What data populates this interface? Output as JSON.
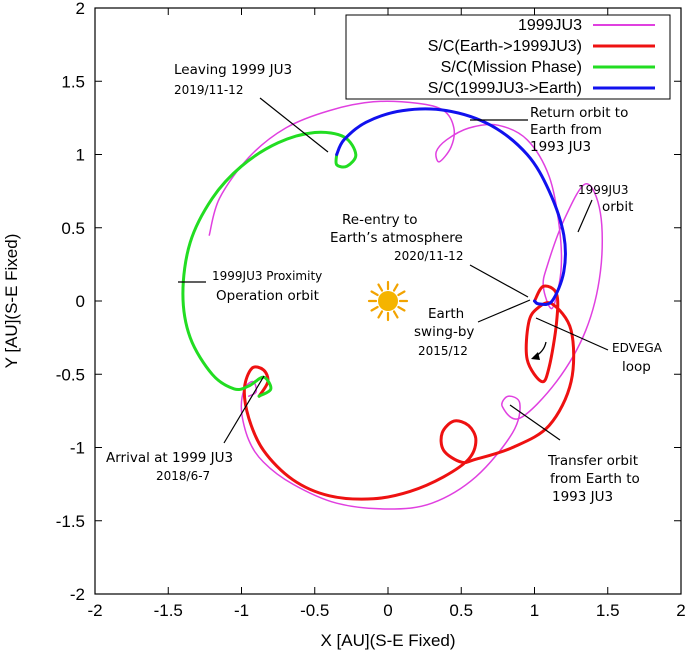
{
  "chart_data": {
    "type": "line",
    "xlabel": "X [AU](S-E Fixed)",
    "ylabel": "Y [AU](S-E Fixed)",
    "xlim": [
      -2,
      2
    ],
    "ylim": [
      -2,
      2
    ],
    "x_ticks": [
      -2,
      -1.5,
      -1,
      -0.5,
      0,
      0.5,
      1,
      1.5,
      2
    ],
    "y_ticks": [
      -2,
      -1.5,
      -1,
      -0.5,
      0,
      0.5,
      1,
      1.5,
      2
    ],
    "x_tick_labels": [
      "-2",
      "-1.5",
      "-1",
      "-0.5",
      "0",
      "0.5",
      "1",
      "1.5",
      "2"
    ],
    "y_tick_labels": [
      "-2",
      "-1.5",
      "-1",
      "-0.5",
      "0",
      "0.5",
      "1",
      "1.5",
      "2"
    ],
    "grid": false,
    "legend_position": "top-right",
    "series": [
      {
        "name": "1999JU3",
        "color": "#e040e0",
        "points": [
          [
            -1.22,
            0.45
          ],
          [
            -1.15,
            0.7
          ],
          [
            -0.95,
            0.98
          ],
          [
            -0.7,
            1.18
          ],
          [
            -0.4,
            1.3
          ],
          [
            -0.1,
            1.36
          ],
          [
            0.2,
            1.35
          ],
          [
            0.38,
            1.3
          ],
          [
            0.45,
            1.18
          ],
          [
            0.43,
            1.05
          ],
          [
            0.35,
            0.95
          ],
          [
            0.33,
            1.02
          ],
          [
            0.4,
            1.1
          ],
          [
            0.55,
            1.18
          ],
          [
            0.75,
            1.2
          ],
          [
            0.95,
            1.1
          ],
          [
            1.1,
            0.85
          ],
          [
            1.17,
            0.5
          ],
          [
            1.18,
            0.2
          ],
          [
            1.12,
            -0.05
          ],
          [
            1.06,
            0.1
          ],
          [
            1.09,
            0.25
          ],
          [
            1.2,
            0.55
          ],
          [
            1.35,
            0.8
          ],
          [
            1.45,
            0.6
          ],
          [
            1.45,
            0.2
          ],
          [
            1.35,
            -0.2
          ],
          [
            1.15,
            -0.55
          ],
          [
            0.9,
            -0.8
          ],
          [
            0.78,
            -0.72
          ],
          [
            0.82,
            -0.65
          ],
          [
            0.9,
            -0.7
          ],
          [
            0.85,
            -0.9
          ],
          [
            0.6,
            -1.2
          ],
          [
            0.3,
            -1.38
          ],
          [
            0,
            -1.42
          ],
          [
            -0.35,
            -1.38
          ],
          [
            -0.65,
            -1.25
          ],
          [
            -0.85,
            -1.1
          ],
          [
            -0.95,
            -0.95
          ],
          [
            -1.0,
            -0.75
          ],
          [
            -0.98,
            -0.6
          ],
          [
            -0.92,
            -0.55
          ],
          [
            -0.9,
            -0.62
          ],
          [
            -0.95,
            -0.65
          ]
        ]
      },
      {
        "name": "S/C(Earth->1999JU3)",
        "color": "#ee1111",
        "points": [
          [
            1.0,
            0.0
          ],
          [
            1.06,
            0.1
          ],
          [
            1.15,
            0.05
          ],
          [
            1.15,
            -0.15
          ],
          [
            1.1,
            -0.45
          ],
          [
            1.05,
            -0.55
          ],
          [
            0.95,
            -0.4
          ],
          [
            0.96,
            -0.15
          ],
          [
            1.02,
            -0.05
          ],
          [
            1.12,
            -0.02
          ],
          [
            1.25,
            -0.2
          ],
          [
            1.25,
            -0.55
          ],
          [
            1.1,
            -0.85
          ],
          [
            0.85,
            -1.0
          ],
          [
            0.6,
            -1.08
          ],
          [
            0.5,
            -1.1
          ],
          [
            0.38,
            -1.02
          ],
          [
            0.37,
            -0.9
          ],
          [
            0.45,
            -0.82
          ],
          [
            0.55,
            -0.85
          ],
          [
            0.6,
            -0.95
          ],
          [
            0.55,
            -1.08
          ],
          [
            0.38,
            -1.2
          ],
          [
            0.15,
            -1.3
          ],
          [
            -0.1,
            -1.35
          ],
          [
            -0.4,
            -1.33
          ],
          [
            -0.65,
            -1.22
          ],
          [
            -0.85,
            -1.02
          ],
          [
            -0.95,
            -0.8
          ],
          [
            -0.98,
            -0.6
          ],
          [
            -0.93,
            -0.46
          ],
          [
            -0.85,
            -0.47
          ],
          [
            -0.82,
            -0.55
          ],
          [
            -0.88,
            -0.65
          ]
        ]
      },
      {
        "name": "S/C(Mission Phase)",
        "color": "#22dd22",
        "points": [
          [
            -0.88,
            -0.65
          ],
          [
            -0.8,
            -0.6
          ],
          [
            -0.85,
            -0.52
          ],
          [
            -0.95,
            -0.58
          ],
          [
            -1.05,
            -0.6
          ],
          [
            -1.2,
            -0.5
          ],
          [
            -1.35,
            -0.25
          ],
          [
            -1.4,
            0.05
          ],
          [
            -1.35,
            0.4
          ],
          [
            -1.2,
            0.7
          ],
          [
            -1.0,
            0.92
          ],
          [
            -0.75,
            1.08
          ],
          [
            -0.5,
            1.15
          ],
          [
            -0.3,
            1.12
          ],
          [
            -0.22,
            1.0
          ],
          [
            -0.28,
            0.92
          ],
          [
            -0.35,
            0.93
          ],
          [
            -0.35,
            1.0
          ]
        ]
      },
      {
        "name": "S/C(1999JU3->Earth)",
        "color": "#1111ee",
        "points": [
          [
            -0.35,
            1.0
          ],
          [
            -0.3,
            1.1
          ],
          [
            -0.15,
            1.22
          ],
          [
            0.1,
            1.3
          ],
          [
            0.4,
            1.3
          ],
          [
            0.7,
            1.2
          ],
          [
            0.95,
            1.0
          ],
          [
            1.1,
            0.75
          ],
          [
            1.2,
            0.45
          ],
          [
            1.2,
            0.2
          ],
          [
            1.12,
            0.0
          ],
          [
            1.03,
            -0.02
          ],
          [
            1.0,
            0.0
          ]
        ]
      }
    ],
    "annotations": [
      {
        "lines": [
          "Leaving 1999 JU3",
          "2019/11-12"
        ]
      },
      {
        "lines": [
          "Return orbit to",
          "Earth from",
          "1993 JU3"
        ]
      },
      {
        "lines": [
          "1999JU3",
          "orbit"
        ]
      },
      {
        "lines": [
          "Re-entry to",
          "Earth’s atmosphere",
          "2020/11-12"
        ]
      },
      {
        "lines": [
          "1999JU3 Proximity",
          "Operation orbit"
        ]
      },
      {
        "lines": [
          "Earth",
          "swing-by",
          "2015/12"
        ]
      },
      {
        "lines": [
          "EDVEGA",
          "loop"
        ]
      },
      {
        "lines": [
          "Arrival at 1999 JU3",
          "2018/6-7"
        ]
      },
      {
        "lines": [
          "Transfer orbit",
          "from Earth to",
          "1993 JU3"
        ]
      }
    ]
  }
}
